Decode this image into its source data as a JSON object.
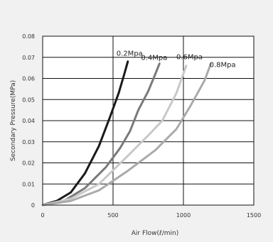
{
  "chart_data": {
    "type": "line",
    "title": "",
    "xlabel": "Air Flow(ℓ/min)",
    "ylabel": "Secondary Pressure(MPa)",
    "xlim": [
      0,
      1500
    ],
    "ylim": [
      0,
      0.08
    ],
    "grid": true,
    "x_ticks": [
      0,
      500,
      1000,
      1500
    ],
    "x_tick_labels": [
      "0",
      "500",
      "1000",
      "1500"
    ],
    "y_ticks": [
      0,
      0.01,
      0.02,
      0.03,
      0.04,
      0.05,
      0.06,
      0.07,
      0.08
    ],
    "y_tick_labels": [
      "0",
      "0.01",
      "0.02",
      "0.03",
      "0.04",
      "0.05",
      "0.06",
      "0.07",
      "0.08"
    ],
    "series": [
      {
        "name": "0.2Mpa",
        "color": "#1a1a1a",
        "x": [
          0,
          100,
          200,
          300,
          400,
          480,
          540,
          580,
          605
        ],
        "y": [
          0,
          0.002,
          0.006,
          0.015,
          0.028,
          0.042,
          0.053,
          0.062,
          0.068
        ]
      },
      {
        "name": "0.4Mpa",
        "color": "#7a7a7a",
        "x": [
          0,
          150,
          300,
          450,
          550,
          620,
          680,
          750,
          800,
          830
        ],
        "y": [
          0,
          0.002,
          0.008,
          0.018,
          0.027,
          0.035,
          0.045,
          0.054,
          0.062,
          0.067
        ]
      },
      {
        "name": "0.6Mpa",
        "color": "#c8c8c8",
        "x": [
          0,
          200,
          400,
          600,
          750,
          850,
          950,
          1020
        ],
        "y": [
          0,
          0.003,
          0.01,
          0.023,
          0.033,
          0.04,
          0.053,
          0.066
        ]
      },
      {
        "name": "0.8Mpa",
        "color": "#aaaaaa",
        "x": [
          0,
          200,
          400,
          600,
          800,
          950,
          1050,
          1150,
          1195
        ],
        "y": [
          0,
          0.002,
          0.007,
          0.016,
          0.026,
          0.036,
          0.047,
          0.059,
          0.067
        ]
      }
    ],
    "annotations": [
      {
        "text": "0.2Mpa",
        "series": "0.2Mpa"
      },
      {
        "text": "0.4Mpa",
        "series": "0.4Mpa"
      },
      {
        "text": "0.6Mpa",
        "series": "0.6Mpa"
      },
      {
        "text": "0.8Mpa",
        "series": "0.8Mpa"
      }
    ]
  }
}
